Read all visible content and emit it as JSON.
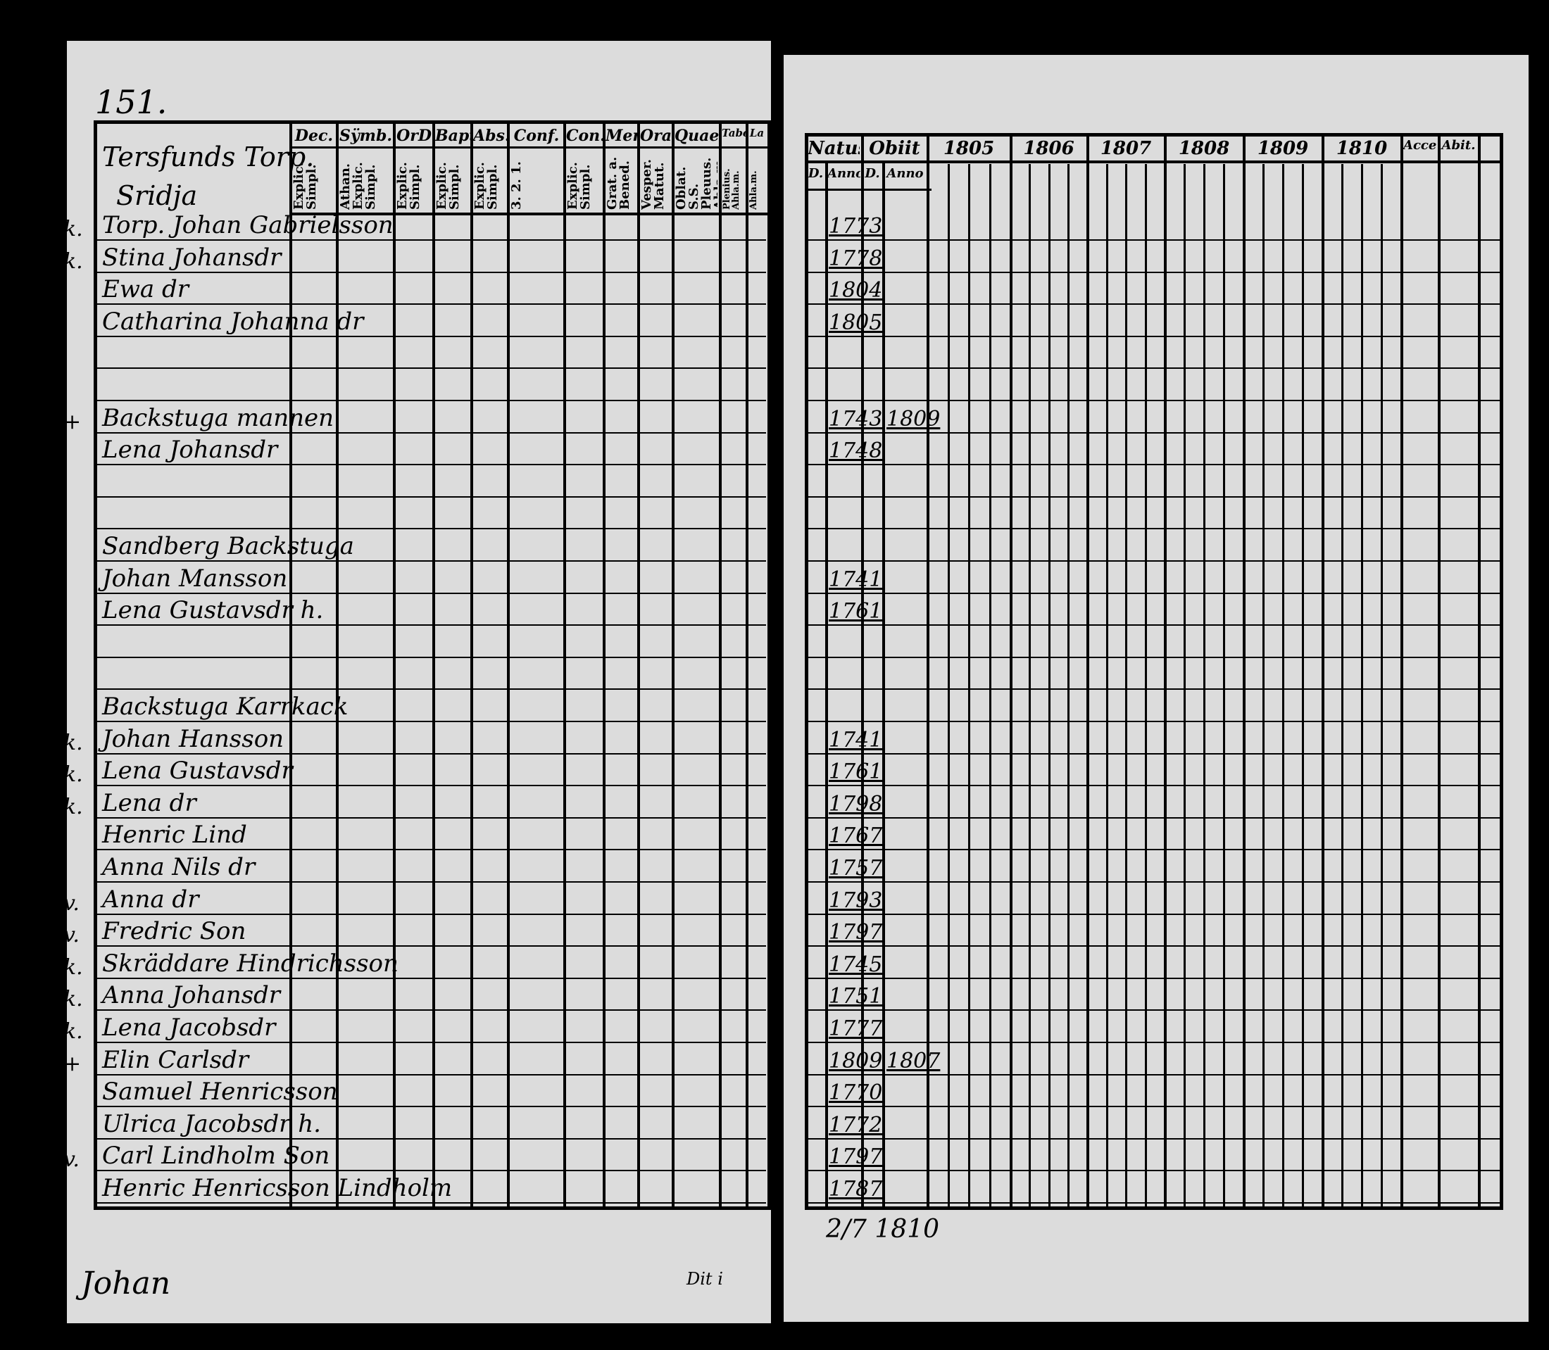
{
  "left_page": {
    "page_number": "151.",
    "place_heading": [
      "Tersfunds Torp.",
      "Sridja"
    ],
    "columns": [
      {
        "head": "Dec.",
        "sub": "Explic. Simpl."
      },
      {
        "head": "Sÿmb.",
        "sub": "Athan. Explic. Simpl."
      },
      {
        "head": "OrD",
        "sub": "Explic. Simpl."
      },
      {
        "head": "Bapt.",
        "sub": "Explic. Simpl."
      },
      {
        "head": "Abs.",
        "sub": "Explic. Simpl."
      },
      {
        "head": "Conf.",
        "sub": "3. 2. 1."
      },
      {
        "head": "Con.D",
        "sub": "Explic. Simpl."
      },
      {
        "head": "Mens.",
        "sub": "Grat. a. Bened."
      },
      {
        "head": "Orat.",
        "sub": "Vesper. Matut."
      },
      {
        "head": "Quaest.",
        "sub": "Oblat. S.S. Pleuus. Ahla.m."
      },
      {
        "head": "Tabel",
        "sub": "Plenius. Ahla.m."
      },
      {
        "head": "La",
        "sub": "Ahla.m."
      }
    ],
    "footer_left": "Johan",
    "footer_right": "Dit i"
  },
  "right_page": {
    "columns": [
      "Natus",
      "Obiit",
      "1805",
      "1806",
      "1807",
      "1808",
      "1809",
      "1810",
      "Acces.",
      "Abit."
    ],
    "subcolumns": [
      "D.",
      "Anno",
      "D.",
      "Anno"
    ],
    "footer_date": "2/7 1810"
  },
  "rows": [
    {
      "idx": 0,
      "marker": "k.",
      "name": "Torp. Johan Gabrielsson",
      "born": "1773"
    },
    {
      "idx": 1,
      "marker": "k.",
      "name": "Stina Johansdr",
      "born": "1778"
    },
    {
      "idx": 2,
      "marker": "",
      "name": "Ewa dr",
      "born": "1804"
    },
    {
      "idx": 3,
      "marker": "",
      "name": "Catharina Johanna dr",
      "born": "1805"
    },
    {
      "idx": 6,
      "marker": "+",
      "name": "Backstuga mannen",
      "born": "1743",
      "died": "1809"
    },
    {
      "idx": 7,
      "marker": "",
      "name": "Lena Johansdr",
      "born": "1748"
    },
    {
      "idx": 10,
      "marker": "",
      "name": "Sandberg Backstuga",
      "born": ""
    },
    {
      "idx": 11,
      "marker": "",
      "name": "Johan Mansson",
      "born": "1741"
    },
    {
      "idx": 12,
      "marker": "",
      "name": "Lena Gustavsdr h.",
      "born": "1761"
    },
    {
      "idx": 15,
      "marker": "",
      "name": "Backstuga Karrkack",
      "born": ""
    },
    {
      "idx": 16,
      "marker": "k.",
      "name": "Johan Hansson",
      "born": "1741"
    },
    {
      "idx": 17,
      "marker": "k.",
      "name": "Lena Gustavsdr",
      "born": "1761"
    },
    {
      "idx": 18,
      "marker": "k.",
      "name": "Lena dr",
      "born": "1798"
    },
    {
      "idx": 19,
      "marker": "",
      "name": "Henric Lind",
      "born": "1767"
    },
    {
      "idx": 20,
      "marker": "",
      "name": "Anna Nils dr",
      "born": "1757"
    },
    {
      "idx": 21,
      "marker": "v.",
      "name": "Anna dr",
      "born": "1793"
    },
    {
      "idx": 22,
      "marker": "v.",
      "name": "Fredric Son",
      "born": "1797"
    },
    {
      "idx": 23,
      "marker": "k.",
      "name": "Skräddare Hindrichsson",
      "born": "1745"
    },
    {
      "idx": 24,
      "marker": "k.",
      "name": "Anna Johansdr",
      "born": "1751"
    },
    {
      "idx": 25,
      "marker": "k.",
      "name": "Lena Jacobsdr",
      "born": "1777"
    },
    {
      "idx": 26,
      "marker": "+",
      "name": "Elin Carlsdr",
      "born": "1809",
      "died": "1807"
    },
    {
      "idx": 27,
      "marker": "",
      "name": "Samuel Henricsson",
      "born": "1770"
    },
    {
      "idx": 28,
      "marker": "",
      "name": "Ulrica Jacobsdr h.",
      "born": "1772"
    },
    {
      "idx": 29,
      "marker": "v.",
      "name": "Carl Lindholm Son",
      "born": "1797"
    },
    {
      "idx": 30,
      "marker": "",
      "name": "Henric Henricsson Lindholm",
      "born": "1787"
    }
  ]
}
